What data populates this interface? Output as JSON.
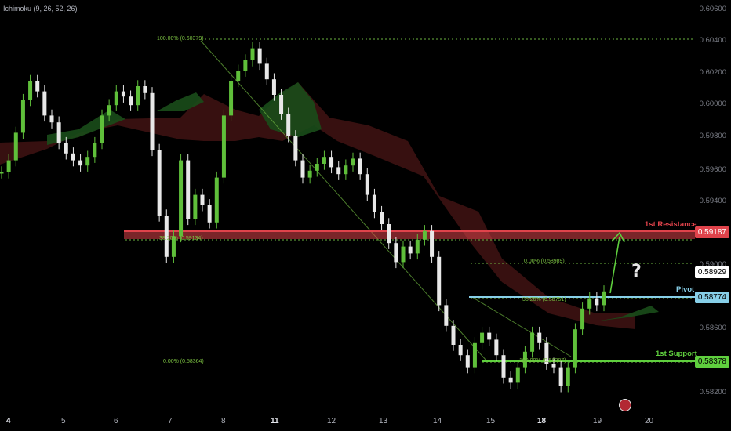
{
  "indicator": {
    "label": "Ichimoku (9, 26, 52, 26)"
  },
  "y_axis": {
    "ticks": [
      "0.60600",
      "0.60400",
      "0.60200",
      "0.60000",
      "0.59800",
      "0.59600",
      "0.59400",
      "0.59000",
      "0.58600",
      "0.58200"
    ]
  },
  "x_axis": {
    "ticks": [
      {
        "label": "4",
        "bold": true
      },
      {
        "label": "5",
        "bold": false
      },
      {
        "label": "6",
        "bold": false
      },
      {
        "label": "7",
        "bold": false
      },
      {
        "label": "8",
        "bold": false
      },
      {
        "label": "11",
        "bold": true
      },
      {
        "label": "12",
        "bold": false
      },
      {
        "label": "13",
        "bold": false
      },
      {
        "label": "14",
        "bold": false
      },
      {
        "label": "15",
        "bold": false
      },
      {
        "label": "18",
        "bold": true
      },
      {
        "label": "19",
        "bold": false
      },
      {
        "label": "20",
        "bold": false
      }
    ]
  },
  "levels": {
    "resistance": {
      "label": "1st Resistance",
      "price": "0.59187",
      "color": "#e0434b"
    },
    "pivot": {
      "label": "Pivot",
      "price": "0.58774",
      "color": "#87cfe8"
    },
    "support": {
      "label": "1st Support",
      "price": "0.58378",
      "color": "#5fcf3e"
    },
    "current": {
      "price": "0.58929"
    }
  },
  "fib_labels": {
    "top": "100.00% (0.60379)",
    "r382": "38.20% (0.59134)",
    "bottom": "0.00% (0.58364)",
    "right_top": "0.00% (0.58989)",
    "right_382": "38.20% (0.58751)",
    "right_bottom": "100.00% (0.58387)"
  },
  "annotation": {
    "question": "?"
  },
  "colors": {
    "up": "#5fbf3a",
    "down": "#e8e8e8",
    "cloud_bull": "#1a4d1a",
    "cloud_bear": "#4a1515",
    "fib": "#6db33f"
  },
  "chart_data": {
    "type": "candlestick",
    "instrument_indicator": "Ichimoku (9, 26, 52, 26)",
    "ylim": [
      0.5815,
      0.6065
    ],
    "horizontal_levels": [
      0.59187,
      0.58774,
      0.58378
    ],
    "current_price": 0.58929,
    "close_path": [
      0.5965,
      0.5972,
      0.5988,
      0.6007,
      0.6018,
      0.6012,
      0.5998,
      0.5994,
      0.5982,
      0.5976,
      0.5972,
      0.5969,
      0.5974,
      0.5982,
      0.5998,
      0.6004,
      0.6012,
      0.6009,
      0.6004,
      0.6015,
      0.6011,
      0.5978,
      0.594,
      0.5916,
      0.5928,
      0.5972,
      0.5938,
      0.5952,
      0.5946,
      0.5936,
      0.5962,
      0.5998,
      0.6018,
      0.6024,
      0.603,
      0.6037,
      0.6028,
      0.6019,
      0.601,
      0.5999,
      0.5986,
      0.5972,
      0.5962,
      0.5966,
      0.597,
      0.5974,
      0.5968,
      0.5964,
      0.5969,
      0.5973,
      0.5964,
      0.5952,
      0.5942,
      0.5935,
      0.5924,
      0.5913,
      0.5922,
      0.5918,
      0.5926,
      0.5931,
      0.5916,
      0.5888,
      0.5876,
      0.5865,
      0.5859,
      0.5852,
      0.5866,
      0.5872,
      0.5868,
      0.5859,
      0.5846,
      0.5843,
      0.5852,
      0.5861,
      0.5872,
      0.5866,
      0.5854,
      0.5852,
      0.5841,
      0.5852,
      0.5874,
      0.5886,
      0.5892,
      0.5888,
      0.5896
    ]
  }
}
